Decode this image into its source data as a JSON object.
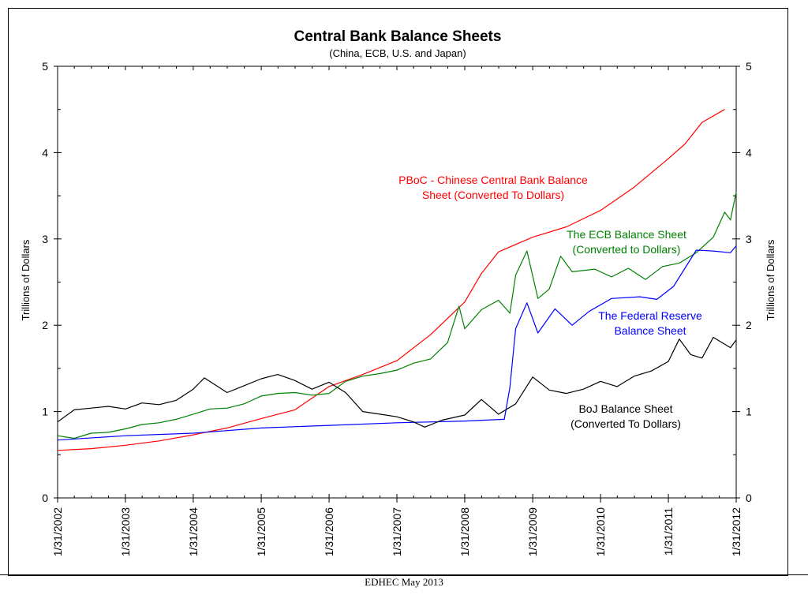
{
  "footer": {
    "text": "EDHEC May 2013"
  },
  "chart_data": {
    "type": "line",
    "title": "Central Bank Balance Sheets",
    "subtitle": "(China, ECB, U.S. and Japan)",
    "ylabel_left": "Trillions of Dollars",
    "ylabel_right": "Trillions of Dollars",
    "ylim": [
      0,
      5
    ],
    "yticks": [
      0,
      1,
      2,
      3,
      4,
      5
    ],
    "xlim": [
      "2002-01-31",
      "2012-01-31"
    ],
    "xticks": [
      "1/31/2002",
      "1/31/2003",
      "1/31/2004",
      "1/31/2005",
      "1/31/2006",
      "1/31/2007",
      "1/31/2008",
      "1/31/2009",
      "1/31/2010",
      "1/31/2011",
      "1/31/2012"
    ],
    "series": [
      {
        "name": "PBoC - Chinese Central Bank Balance Sheet (Converted To Dollars)",
        "color": "#ff0000",
        "points": [
          [
            "2002-01-31",
            0.55
          ],
          [
            "2002-07-31",
            0.57
          ],
          [
            "2003-01-31",
            0.61
          ],
          [
            "2003-07-31",
            0.66
          ],
          [
            "2004-01-31",
            0.73
          ],
          [
            "2004-07-31",
            0.81
          ],
          [
            "2005-01-31",
            0.92
          ],
          [
            "2005-07-31",
            1.02
          ],
          [
            "2006-01-31",
            1.29
          ],
          [
            "2006-07-31",
            1.43
          ],
          [
            "2007-01-31",
            1.59
          ],
          [
            "2007-07-31",
            1.89
          ],
          [
            "2008-01-31",
            2.27
          ],
          [
            "2008-04-30",
            2.6
          ],
          [
            "2008-07-31",
            2.85
          ],
          [
            "2009-01-31",
            3.02
          ],
          [
            "2009-07-31",
            3.14
          ],
          [
            "2010-01-31",
            3.33
          ],
          [
            "2010-07-31",
            3.6
          ],
          [
            "2011-01-31",
            3.93
          ],
          [
            "2011-04-30",
            4.1
          ],
          [
            "2011-07-31",
            4.35
          ],
          [
            "2011-11-30",
            4.5
          ]
        ]
      },
      {
        "name": "The ECB Balance Sheet (Converted to Dollars)",
        "color": "#008000",
        "points": [
          [
            "2002-01-31",
            0.72
          ],
          [
            "2002-04-30",
            0.69
          ],
          [
            "2002-07-31",
            0.75
          ],
          [
            "2002-10-31",
            0.76
          ],
          [
            "2003-01-31",
            0.8
          ],
          [
            "2003-04-30",
            0.85
          ],
          [
            "2003-07-31",
            0.87
          ],
          [
            "2003-10-31",
            0.91
          ],
          [
            "2004-01-31",
            0.97
          ],
          [
            "2004-04-30",
            1.03
          ],
          [
            "2004-07-31",
            1.04
          ],
          [
            "2004-10-31",
            1.09
          ],
          [
            "2005-01-31",
            1.18
          ],
          [
            "2005-04-30",
            1.21
          ],
          [
            "2005-07-31",
            1.22
          ],
          [
            "2005-10-31",
            1.19
          ],
          [
            "2006-01-31",
            1.21
          ],
          [
            "2006-04-30",
            1.35
          ],
          [
            "2006-07-31",
            1.41
          ],
          [
            "2006-10-31",
            1.44
          ],
          [
            "2007-01-31",
            1.48
          ],
          [
            "2007-04-30",
            1.56
          ],
          [
            "2007-07-31",
            1.61
          ],
          [
            "2007-10-31",
            1.8
          ],
          [
            "2007-12-31",
            2.22
          ],
          [
            "2008-01-31",
            1.96
          ],
          [
            "2008-04-30",
            2.18
          ],
          [
            "2008-07-31",
            2.29
          ],
          [
            "2008-09-30",
            2.14
          ],
          [
            "2008-10-31",
            2.58
          ],
          [
            "2008-12-31",
            2.86
          ],
          [
            "2009-02-28",
            2.31
          ],
          [
            "2009-04-30",
            2.42
          ],
          [
            "2009-06-30",
            2.8
          ],
          [
            "2009-08-31",
            2.62
          ],
          [
            "2009-12-31",
            2.65
          ],
          [
            "2010-03-31",
            2.56
          ],
          [
            "2010-06-30",
            2.66
          ],
          [
            "2010-09-30",
            2.53
          ],
          [
            "2010-12-31",
            2.68
          ],
          [
            "2011-03-31",
            2.72
          ],
          [
            "2011-06-30",
            2.84
          ],
          [
            "2011-09-30",
            3.02
          ],
          [
            "2011-11-30",
            3.31
          ],
          [
            "2011-12-31",
            3.22
          ],
          [
            "2012-01-31",
            3.54
          ]
        ]
      },
      {
        "name": "The Federal Reserve Balance Sheet",
        "color": "#0000ff",
        "points": [
          [
            "2002-01-31",
            0.67
          ],
          [
            "2003-01-31",
            0.72
          ],
          [
            "2004-01-31",
            0.75
          ],
          [
            "2005-01-31",
            0.81
          ],
          [
            "2006-01-31",
            0.84
          ],
          [
            "2007-01-31",
            0.87
          ],
          [
            "2008-01-31",
            0.89
          ],
          [
            "2008-08-31",
            0.91
          ],
          [
            "2008-09-30",
            1.28
          ],
          [
            "2008-10-31",
            1.96
          ],
          [
            "2008-12-31",
            2.26
          ],
          [
            "2009-02-28",
            1.91
          ],
          [
            "2009-05-31",
            2.19
          ],
          [
            "2009-08-31",
            2.0
          ],
          [
            "2009-11-30",
            2.16
          ],
          [
            "2010-03-31",
            2.31
          ],
          [
            "2010-08-31",
            2.33
          ],
          [
            "2010-11-30",
            2.3
          ],
          [
            "2011-02-28",
            2.45
          ],
          [
            "2011-06-30",
            2.87
          ],
          [
            "2011-09-30",
            2.86
          ],
          [
            "2011-12-31",
            2.84
          ],
          [
            "2012-01-31",
            2.92
          ]
        ]
      },
      {
        "name": "BoJ Balance Sheet (Converted To Dollars)",
        "color": "#000000",
        "points": [
          [
            "2002-01-31",
            0.88
          ],
          [
            "2002-04-30",
            1.02
          ],
          [
            "2002-07-31",
            1.04
          ],
          [
            "2002-10-31",
            1.06
          ],
          [
            "2003-01-31",
            1.03
          ],
          [
            "2003-04-30",
            1.1
          ],
          [
            "2003-07-31",
            1.08
          ],
          [
            "2003-10-31",
            1.13
          ],
          [
            "2004-01-31",
            1.26
          ],
          [
            "2004-03-31",
            1.39
          ],
          [
            "2004-07-31",
            1.22
          ],
          [
            "2004-10-31",
            1.3
          ],
          [
            "2005-01-31",
            1.38
          ],
          [
            "2005-04-30",
            1.43
          ],
          [
            "2005-07-31",
            1.36
          ],
          [
            "2005-10-31",
            1.26
          ],
          [
            "2006-01-31",
            1.34
          ],
          [
            "2006-04-30",
            1.22
          ],
          [
            "2006-07-31",
            1.0
          ],
          [
            "2006-10-31",
            0.97
          ],
          [
            "2007-01-31",
            0.94
          ],
          [
            "2007-04-30",
            0.88
          ],
          [
            "2007-06-30",
            0.82
          ],
          [
            "2007-09-30",
            0.9
          ],
          [
            "2008-01-31",
            0.96
          ],
          [
            "2008-04-30",
            1.14
          ],
          [
            "2008-07-31",
            0.97
          ],
          [
            "2008-10-31",
            1.09
          ],
          [
            "2009-01-31",
            1.4
          ],
          [
            "2009-04-30",
            1.25
          ],
          [
            "2009-07-31",
            1.21
          ],
          [
            "2009-10-31",
            1.26
          ],
          [
            "2010-01-31",
            1.35
          ],
          [
            "2010-04-30",
            1.29
          ],
          [
            "2010-07-31",
            1.41
          ],
          [
            "2010-10-31",
            1.47
          ],
          [
            "2011-01-31",
            1.58
          ],
          [
            "2011-03-31",
            1.84
          ],
          [
            "2011-05-31",
            1.66
          ],
          [
            "2011-07-31",
            1.62
          ],
          [
            "2011-09-30",
            1.86
          ],
          [
            "2011-12-31",
            1.74
          ],
          [
            "2012-01-31",
            1.83
          ]
        ]
      }
    ],
    "annotations": [
      {
        "lines": [
          "PBoC - Chinese Central Bank Balance",
          "Sheet (Converted To Dollars)"
        ],
        "color": "#ff0000"
      },
      {
        "lines": [
          "The ECB Balance Sheet",
          "(Converted to Dollars)"
        ],
        "color": "#008000"
      },
      {
        "lines": [
          "The Federal Reserve",
          "Balance Sheet"
        ],
        "color": "#0000ff"
      },
      {
        "lines": [
          "BoJ Balance Sheet",
          "(Converted To Dollars)"
        ],
        "color": "#000000"
      }
    ]
  }
}
